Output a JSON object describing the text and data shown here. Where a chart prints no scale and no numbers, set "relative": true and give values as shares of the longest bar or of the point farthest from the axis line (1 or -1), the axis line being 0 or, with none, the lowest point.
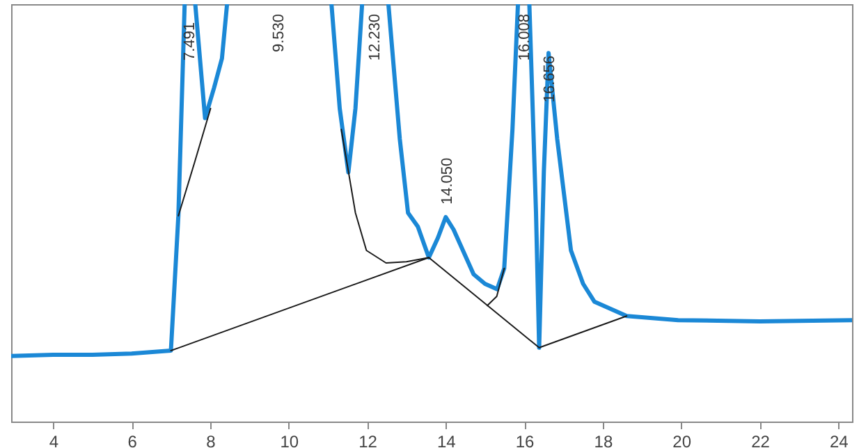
{
  "chart_data": {
    "type": "line",
    "relative": true,
    "xlim": [
      2.93,
      24.35
    ],
    "xticks": [
      4,
      6,
      8,
      10,
      12,
      14,
      16,
      18,
      20,
      22,
      24
    ],
    "series": [
      {
        "color": "#1b88d6",
        "x": [
          2.93,
          4.0,
          5.0,
          6.0,
          7.0,
          7.19,
          7.35,
          7.45,
          7.62,
          7.87,
          8.1,
          8.3,
          8.43,
          9.5,
          11.09,
          11.3,
          11.52,
          11.7,
          11.87,
          12.2,
          12.54,
          12.83,
          13.04,
          13.29,
          13.57,
          13.8,
          14.0,
          14.2,
          14.71,
          15.0,
          15.31,
          15.49,
          15.7,
          15.84,
          16.0,
          16.13,
          16.3,
          16.38,
          16.5,
          16.62,
          16.84,
          17.19,
          17.5,
          17.79,
          18.61,
          19.92,
          22.0,
          24.35
        ],
        "values": [
          0.157,
          0.16,
          0.16,
          0.163,
          0.17,
          0.493,
          1,
          null,
          1,
          0.727,
          0.8,
          0.87,
          1,
          null,
          1,
          0.75,
          0.597,
          0.75,
          1,
          null,
          1,
          0.677,
          0.5,
          0.467,
          0.393,
          0.44,
          0.49,
          0.46,
          0.353,
          0.33,
          0.317,
          0.367,
          0.7,
          1,
          null,
          1,
          0.5,
          0.177,
          0.6,
          0.883,
          0.677,
          0.41,
          0.33,
          0.287,
          0.253,
          0.243,
          0.24,
          0.243
        ]
      },
      {
        "color": "#1a1a1a",
        "x": [
          7.0,
          13.57,
          16.38,
          18.61
        ],
        "values": [
          0.17,
          0.393,
          0.177,
          0.253
        ]
      },
      {
        "color": "#1a1a1a",
        "x": [
          7.19,
          7.6,
          8.01
        ],
        "values": [
          0.493,
          0.62,
          0.75
        ]
      },
      {
        "color": "#1a1a1a",
        "x": [
          11.34,
          11.7,
          11.98,
          12.48,
          13.0,
          13.57
        ],
        "values": [
          0.7,
          0.5,
          0.41,
          0.38,
          0.383,
          0.393
        ]
      },
      {
        "color": "#1a1a1a",
        "x": [
          15.06,
          15.3,
          15.49
        ],
        "values": [
          0.278,
          0.3,
          0.367
        ]
      }
    ],
    "annotations": [
      {
        "text": "7.491",
        "x": 7.491,
        "y": 0.95
      },
      "9.530",
      "12.230",
      {
        "text": "14.050",
        "x": 14.05,
        "y": 0.5
      },
      {
        "text": "16.008",
        "x": 16.008,
        "y": 0.97
      },
      {
        "text": "16.656",
        "x": 16.656,
        "y": 0.87
      }
    ]
  }
}
